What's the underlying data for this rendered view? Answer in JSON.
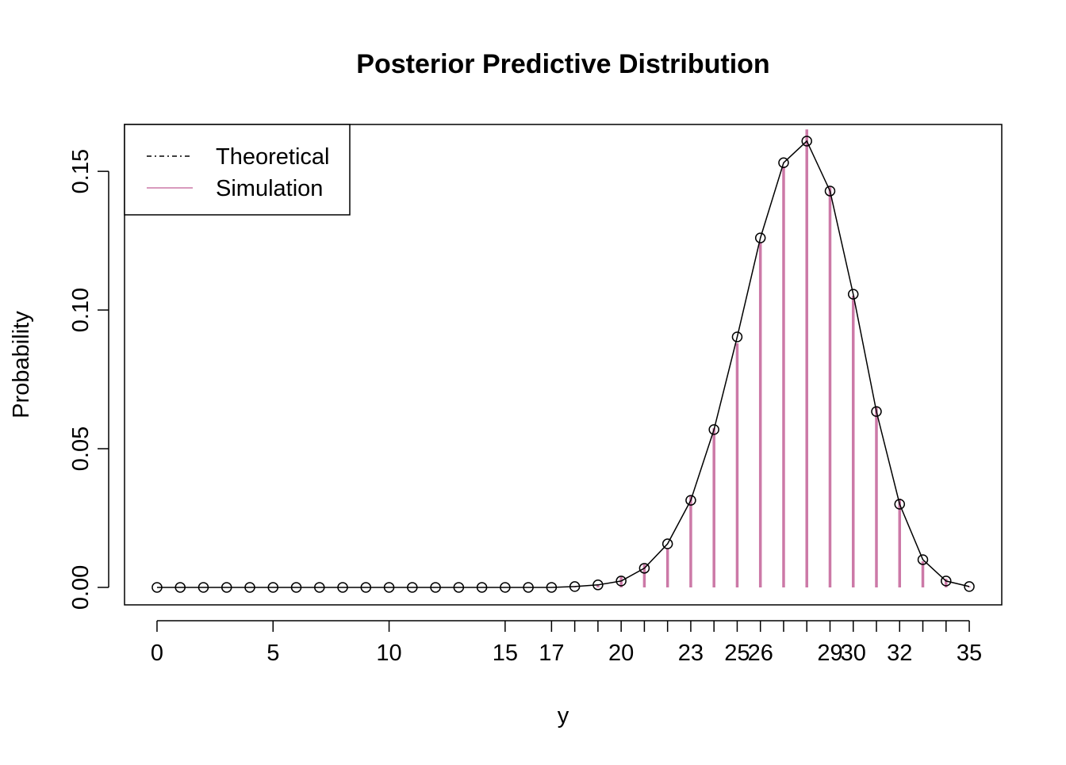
{
  "chart_data": {
    "type": "line",
    "title": "Posterior Predictive Distribution",
    "x_label": "y",
    "y_label": "Probability",
    "x": [
      0,
      1,
      2,
      3,
      4,
      5,
      6,
      7,
      8,
      9,
      10,
      11,
      12,
      13,
      14,
      15,
      16,
      17,
      18,
      19,
      20,
      21,
      22,
      23,
      24,
      25,
      26,
      27,
      28,
      29,
      30,
      31,
      32,
      33,
      34,
      35
    ],
    "series": [
      {
        "name": "Theoretical",
        "color": "#000000",
        "style": "points-line",
        "values": [
          0,
          0,
          0,
          0,
          0,
          0,
          0,
          0,
          0,
          0,
          0,
          0,
          0,
          0,
          0,
          0,
          0,
          0,
          0.0003,
          0.0009,
          0.0023,
          0.0069,
          0.0157,
          0.0314,
          0.0569,
          0.0903,
          0.126,
          0.1531,
          0.1609,
          0.1429,
          0.1057,
          0.0634,
          0.03,
          0.01,
          0.0023,
          0.0003
        ]
      },
      {
        "name": "Simulation",
        "color": "#cc79a7",
        "style": "spikes",
        "values": [
          0,
          0,
          0,
          0,
          0,
          0,
          0,
          0,
          0,
          0,
          0,
          0,
          0,
          0,
          0,
          0,
          0,
          0,
          0.0003,
          0.001,
          0.004,
          0.0083,
          0.014,
          0.033,
          0.0574,
          0.088,
          0.1243,
          0.1517,
          0.1651,
          0.1443,
          0.1051,
          0.0651,
          0.032,
          0.0094,
          0.0031,
          0.0003
        ]
      }
    ],
    "xlim": [
      -1.4,
      36.4
    ],
    "ylim": [
      -0.0063,
      0.1669
    ],
    "xticks": [
      0,
      5,
      10,
      15,
      17,
      20,
      23,
      25,
      26,
      29,
      30,
      32,
      35
    ],
    "xminor": [
      18,
      19,
      21,
      22,
      24,
      27,
      28,
      31,
      33,
      34
    ],
    "yticks": [
      {
        "value": 0,
        "label": "0.00"
      },
      {
        "value": 0.05,
        "label": "0.05"
      },
      {
        "value": 0.1,
        "label": "0.10"
      },
      {
        "value": 0.15,
        "label": "0.15"
      }
    ],
    "legend": "top-left"
  }
}
